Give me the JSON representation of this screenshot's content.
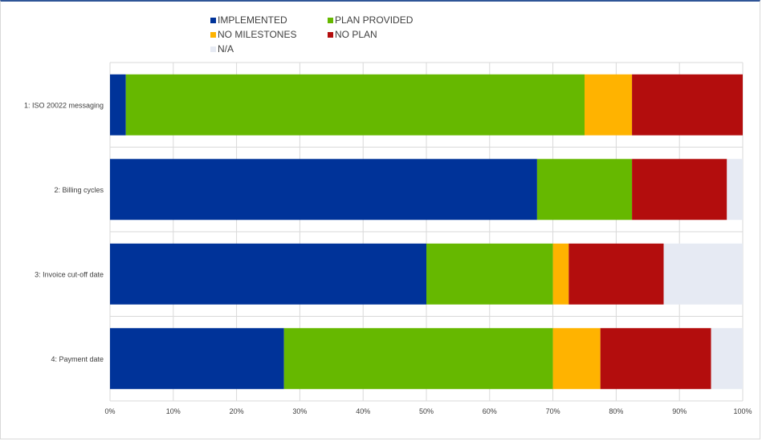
{
  "chart_data": {
    "type": "bar",
    "orientation": "horizontal",
    "stacked": true,
    "categories": [
      "1: ISO 20022 messaging",
      "2: Billing cycles",
      "3: Invoice cut-off date",
      "4: Payment date"
    ],
    "series": [
      {
        "name": "IMPLEMENTED",
        "color": "#003399",
        "values": [
          2.5,
          67.5,
          50,
          27.5
        ]
      },
      {
        "name": "PLAN PROVIDED",
        "color": "#66b800",
        "values": [
          72.5,
          15,
          20,
          42.5
        ]
      },
      {
        "name": "NO MILESTONES",
        "color": "#ffb300",
        "values": [
          7.5,
          0,
          2.5,
          7.5
        ]
      },
      {
        "name": "NO PLAN",
        "color": "#b30d0d",
        "values": [
          17.5,
          15,
          15,
          17.5
        ]
      },
      {
        "name": "N/A",
        "color": "#e6eaf3",
        "values": [
          0,
          2.5,
          12.5,
          5
        ]
      }
    ],
    "xlim": [
      0,
      100
    ],
    "x_ticks": [
      "0%",
      "10%",
      "20%",
      "30%",
      "40%",
      "50%",
      "60%",
      "70%",
      "80%",
      "90%",
      "100%"
    ],
    "grid": true,
    "legend_position": "top"
  }
}
